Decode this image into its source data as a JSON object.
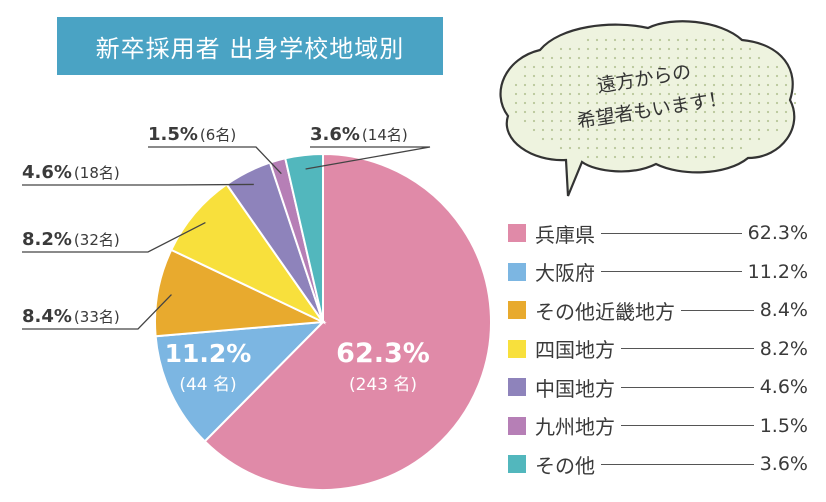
{
  "title": "新卒採用者 出身学校地域別",
  "bubble": {
    "line1": "遠方からの",
    "line2": "希望者もいます！"
  },
  "chart_data": {
    "type": "pie",
    "title": "新卒採用者 出身学校地域別",
    "series": [
      {
        "name": "兵庫県",
        "percent": 62.3,
        "count": 243,
        "percent_label": "62.3%",
        "count_label": "(243 名)",
        "legend_value": "62.3%",
        "color": "#e08aa8"
      },
      {
        "name": "大阪府",
        "percent": 11.2,
        "count": 44,
        "percent_label": "11.2%",
        "count_label": "(44 名)",
        "legend_value": "11.2%",
        "color": "#7cb6e2"
      },
      {
        "name": "その他近畿地方",
        "percent": 8.4,
        "count": 33,
        "percent_label": "8.4%",
        "count_label": "(33名)",
        "legend_value": "8.4%",
        "color": "#e8aa2e"
      },
      {
        "name": "四国地方",
        "percent": 8.2,
        "count": 32,
        "percent_label": "8.2%",
        "count_label": "(32名)",
        "legend_value": "8.2%",
        "color": "#f8e03c"
      },
      {
        "name": "中国地方",
        "percent": 4.6,
        "count": 18,
        "percent_label": "4.6%",
        "count_label": "(18名)",
        "legend_value": "4.6%",
        "color": "#8e83bb"
      },
      {
        "name": "九州地方",
        "percent": 1.5,
        "count": 6,
        "percent_label": "1.5%",
        "count_label": "(6名)",
        "legend_value": "1.5%",
        "color": "#b67fb6"
      },
      {
        "name": "その他",
        "percent": 3.6,
        "count": 14,
        "percent_label": "3.6%",
        "count_label": "(14名)",
        "legend_value": "3.6%",
        "color": "#52b7bd"
      }
    ]
  }
}
